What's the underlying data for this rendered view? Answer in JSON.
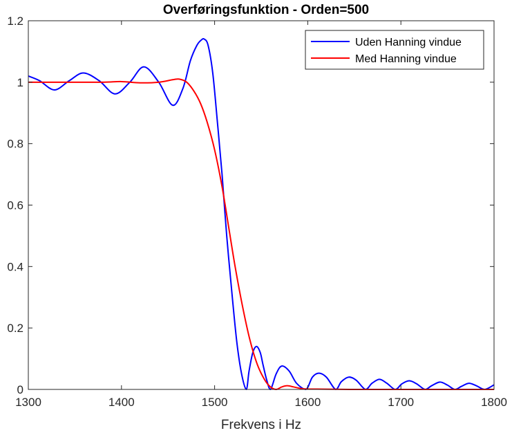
{
  "chart_data": {
    "type": "line",
    "title": "Overføringsfunktion - Orden=500",
    "xlabel": "Frekvens i Hz",
    "ylabel": "",
    "xlim": [
      1300,
      1800
    ],
    "ylim": [
      0,
      1.2
    ],
    "xticks": [
      1300,
      1400,
      1500,
      1600,
      1700,
      1800
    ],
    "xtick_labels": [
      "1300",
      "1400",
      "1500",
      "1600",
      "1700",
      "1800"
    ],
    "yticks": [
      0,
      0.2,
      0.4,
      0.6,
      0.8,
      1,
      1.2
    ],
    "ytick_labels": [
      "0",
      "0.2",
      "0.4",
      "0.6",
      "0.8",
      "1",
      "1.2"
    ],
    "grid": false,
    "legend_position": "top-right",
    "series": [
      {
        "name": "Uden Hanning vindue",
        "color": "#0000ff",
        "x": [
          1300,
          1312,
          1328,
          1344,
          1359,
          1376,
          1393,
          1409,
          1424,
          1440,
          1455,
          1466,
          1474,
          1481,
          1486,
          1489,
          1493,
          1498,
          1503,
          1508,
          1513,
          1519,
          1524,
          1529,
          1534,
          1537,
          1541,
          1545,
          1549,
          1552,
          1556,
          1560,
          1566,
          1572,
          1580,
          1588,
          1598,
          1605,
          1612,
          1620,
          1630,
          1636,
          1644,
          1652,
          1662,
          1669,
          1677,
          1685,
          1694,
          1701,
          1709,
          1717,
          1726,
          1733,
          1742,
          1750,
          1758,
          1765,
          1773,
          1781,
          1790,
          1800
        ],
        "y": [
          1.02,
          1.005,
          0.975,
          1.005,
          1.03,
          1.005,
          0.962,
          1.0,
          1.05,
          1.0,
          0.925,
          0.98,
          1.07,
          1.12,
          1.138,
          1.14,
          1.12,
          1.03,
          0.87,
          0.7,
          0.5,
          0.3,
          0.15,
          0.05,
          0.0,
          0.06,
          0.12,
          0.14,
          0.12,
          0.08,
          0.03,
          0.0,
          0.05,
          0.076,
          0.06,
          0.02,
          0.0,
          0.04,
          0.053,
          0.04,
          0.0,
          0.025,
          0.04,
          0.03,
          0.0,
          0.02,
          0.033,
          0.02,
          0.0,
          0.018,
          0.028,
          0.018,
          0.0,
          0.012,
          0.024,
          0.014,
          0.0,
          0.01,
          0.02,
          0.012,
          0.0,
          0.015
        ]
      },
      {
        "name": "Med Hanning vindue",
        "color": "#ff0000",
        "x": [
          1300,
          1340,
          1380,
          1400,
          1420,
          1440,
          1455,
          1462,
          1470,
          1478,
          1485,
          1492,
          1500,
          1508,
          1515,
          1522,
          1530,
          1538,
          1546,
          1554,
          1560,
          1566,
          1572,
          1578,
          1585,
          1595,
          1610,
          1650,
          1700,
          1750,
          1800
        ],
        "y": [
          1.0,
          1.0,
          1.0,
          1.002,
          0.998,
          1.0,
          1.008,
          1.01,
          1.0,
          0.97,
          0.93,
          0.87,
          0.78,
          0.66,
          0.53,
          0.4,
          0.27,
          0.16,
          0.08,
          0.03,
          0.008,
          0.0,
          0.008,
          0.012,
          0.008,
          0.002,
          0.001,
          0.0,
          0.0,
          0.0,
          0.0
        ]
      }
    ]
  }
}
